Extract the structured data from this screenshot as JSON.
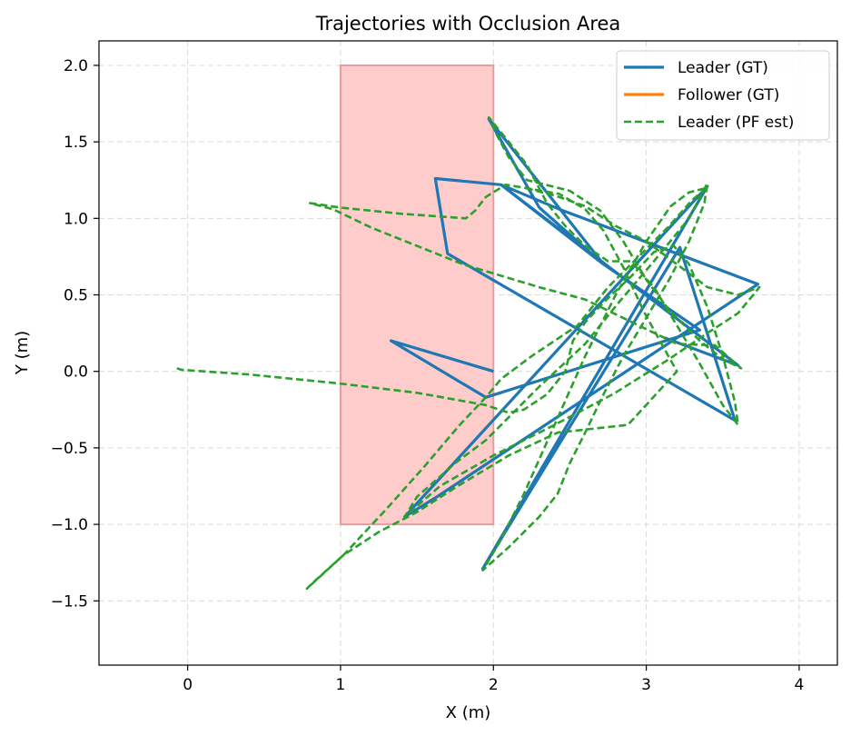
{
  "chart_data": {
    "type": "line",
    "title": "Trajectories with Occlusion Area",
    "xlabel": "X (m)",
    "ylabel": "Y (m)",
    "xlim": [
      -0.58,
      4.25
    ],
    "ylim": [
      -1.92,
      2.16
    ],
    "x_ticks": [
      0,
      1,
      2,
      3,
      4
    ],
    "x_tick_labels": [
      "0",
      "1",
      "2",
      "3",
      "4"
    ],
    "y_ticks": [
      -1.5,
      -1.0,
      -0.5,
      0.0,
      0.5,
      1.0,
      1.5,
      2.0
    ],
    "y_tick_labels": [
      "−1.5",
      "−1.0",
      "−0.5",
      "0.0",
      "0.5",
      "1.0",
      "1.5",
      "2.0"
    ],
    "grid": true,
    "legend_position": "top-right",
    "occlusion_area": {
      "x": [
        1.0,
        2.0
      ],
      "y": [
        -1.0,
        2.0
      ],
      "color": "#ffcccc",
      "edge_color": "#e89c9c"
    },
    "series": [
      {
        "name": "Leader (GT)",
        "color": "#1f77b4",
        "style": "solid",
        "points": [
          [
            2.0,
            0.0
          ],
          [
            1.33,
            0.2
          ],
          [
            1.95,
            -0.17
          ],
          [
            3.35,
            0.27
          ],
          [
            2.72,
            0.7
          ],
          [
            1.97,
            1.65
          ],
          [
            2.3,
            1.07
          ],
          [
            2.72,
            0.7
          ],
          [
            2.05,
            1.22
          ],
          [
            1.62,
            1.26
          ],
          [
            1.7,
            0.77
          ],
          [
            3.58,
            -0.32
          ],
          [
            3.22,
            0.81
          ],
          [
            1.93,
            -1.29
          ],
          [
            3.4,
            1.21
          ],
          [
            1.42,
            -0.95
          ],
          [
            1.63,
            -0.82
          ],
          [
            3.73,
            0.57
          ],
          [
            2.43,
            1.06
          ],
          [
            2.05,
            1.22
          ],
          [
            3.6,
            0.04
          ],
          [
            3.12,
            0.22
          ]
        ]
      },
      {
        "name": "Follower (GT)",
        "color": "#ff7f0e",
        "style": "solid",
        "points": []
      },
      {
        "name": "Leader (PF est)",
        "color": "#2ca02c",
        "style": "dashed",
        "points": [
          [
            -0.07,
            0.02
          ],
          [
            -0.04,
            0.01
          ],
          [
            0.4,
            -0.02
          ],
          [
            1.0,
            -0.08
          ],
          [
            1.5,
            -0.14
          ],
          [
            1.95,
            -0.22
          ],
          [
            2.1,
            -0.27
          ],
          [
            2.2,
            -0.25
          ],
          [
            2.35,
            -0.15
          ],
          [
            2.47,
            0.0
          ],
          [
            2.52,
            0.2
          ],
          [
            2.6,
            0.32
          ],
          [
            2.72,
            0.45
          ],
          [
            2.9,
            0.62
          ],
          [
            3.05,
            0.78
          ],
          [
            3.18,
            0.82
          ],
          [
            3.28,
            0.7
          ],
          [
            3.4,
            0.42
          ],
          [
            3.5,
            0.1
          ],
          [
            3.58,
            -0.2
          ],
          [
            3.6,
            -0.35
          ],
          [
            3.5,
            -0.22
          ],
          [
            3.35,
            0.05
          ],
          [
            3.2,
            0.3
          ],
          [
            3.05,
            0.55
          ],
          [
            2.9,
            0.72
          ],
          [
            2.75,
            0.72
          ],
          [
            2.6,
            0.82
          ],
          [
            2.47,
            0.95
          ],
          [
            2.35,
            1.1
          ],
          [
            2.22,
            1.35
          ],
          [
            2.1,
            1.5
          ],
          [
            1.97,
            1.66
          ],
          [
            2.02,
            1.55
          ],
          [
            2.1,
            1.4
          ],
          [
            2.22,
            1.25
          ],
          [
            2.5,
            1.18
          ],
          [
            2.7,
            1.05
          ],
          [
            2.85,
            0.85
          ],
          [
            3.0,
            0.6
          ],
          [
            3.15,
            0.4
          ],
          [
            3.35,
            0.2
          ],
          [
            3.5,
            0.08
          ],
          [
            3.62,
            0.02
          ],
          [
            3.45,
            0.17
          ],
          [
            3.2,
            0.18
          ],
          [
            2.95,
            0.3
          ],
          [
            2.6,
            0.47
          ],
          [
            2.3,
            0.55
          ],
          [
            1.8,
            0.7
          ],
          [
            1.5,
            0.82
          ],
          [
            1.2,
            0.94
          ],
          [
            0.95,
            1.06
          ],
          [
            0.8,
            1.1
          ],
          [
            1.0,
            1.07
          ],
          [
            1.4,
            1.03
          ],
          [
            1.82,
            1.0
          ],
          [
            1.88,
            1.05
          ],
          [
            1.95,
            1.14
          ],
          [
            2.08,
            1.22
          ],
          [
            2.2,
            1.2
          ],
          [
            2.43,
            1.16
          ],
          [
            2.6,
            1.06
          ],
          [
            2.72,
            0.92
          ],
          [
            2.85,
            0.68
          ],
          [
            2.98,
            0.4
          ],
          [
            3.1,
            0.18
          ],
          [
            3.2,
            0.0
          ],
          [
            2.88,
            -0.35
          ],
          [
            2.42,
            -0.4
          ],
          [
            2.1,
            -0.55
          ],
          [
            1.75,
            -0.76
          ],
          [
            1.5,
            -0.92
          ],
          [
            1.25,
            -1.05
          ],
          [
            1.02,
            -1.2
          ],
          [
            0.82,
            -1.38
          ],
          [
            0.78,
            -1.42
          ],
          [
            1.02,
            -1.2
          ],
          [
            1.3,
            -0.9
          ],
          [
            1.55,
            -0.62
          ],
          [
            1.78,
            -0.35
          ],
          [
            1.95,
            -0.17
          ],
          [
            2.05,
            -0.05
          ],
          [
            2.25,
            0.1
          ],
          [
            2.55,
            0.3
          ],
          [
            2.75,
            0.55
          ],
          [
            2.95,
            0.75
          ],
          [
            3.15,
            0.95
          ],
          [
            3.3,
            1.12
          ],
          [
            3.4,
            1.2
          ],
          [
            3.28,
            1.17
          ],
          [
            3.16,
            1.08
          ],
          [
            3.0,
            0.85
          ],
          [
            2.8,
            0.5
          ],
          [
            2.6,
            0.1
          ],
          [
            2.4,
            -0.35
          ],
          [
            2.2,
            -0.8
          ],
          [
            2.05,
            -1.1
          ],
          [
            1.93,
            -1.3
          ],
          [
            2.1,
            -1.15
          ],
          [
            2.3,
            -0.95
          ],
          [
            2.42,
            -0.8
          ],
          [
            2.5,
            -0.6
          ],
          [
            2.6,
            -0.4
          ],
          [
            2.72,
            -0.15
          ],
          [
            2.85,
            0.1
          ],
          [
            3.0,
            0.35
          ],
          [
            3.15,
            0.6
          ],
          [
            3.28,
            0.85
          ],
          [
            3.38,
            1.1
          ],
          [
            3.4,
            1.23
          ],
          [
            3.28,
            1.0
          ],
          [
            3.05,
            0.72
          ],
          [
            2.82,
            0.45
          ],
          [
            2.6,
            0.18
          ],
          [
            2.3,
            -0.1
          ],
          [
            1.95,
            -0.45
          ],
          [
            1.75,
            -0.6
          ],
          [
            1.5,
            -0.82
          ],
          [
            1.42,
            -0.95
          ],
          [
            1.65,
            -0.75
          ],
          [
            2.0,
            -0.55
          ],
          [
            2.4,
            -0.35
          ],
          [
            2.78,
            -0.15
          ],
          [
            3.15,
            0.08
          ],
          [
            3.4,
            0.25
          ],
          [
            3.6,
            0.38
          ],
          [
            3.7,
            0.5
          ],
          [
            3.74,
            0.55
          ],
          [
            3.6,
            0.5
          ],
          [
            3.4,
            0.55
          ],
          [
            3.2,
            0.7
          ],
          [
            3.0,
            0.85
          ],
          [
            2.8,
            0.95
          ],
          [
            2.6,
            1.08
          ],
          [
            2.4,
            1.15
          ],
          [
            2.2,
            1.2
          ]
        ]
      }
    ]
  }
}
